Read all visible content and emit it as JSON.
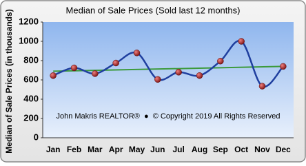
{
  "chart_data": {
    "type": "line",
    "title": "Median of Sale Prices (Sold last 12 months)",
    "y_label": "Median of Sale Prices (in thousands)",
    "annotation": "John Makris REALTOR®  ●  © Copyright 2019 All Rights Reserved",
    "categories": [
      "Jan",
      "Feb",
      "Mar",
      "Apr",
      "May",
      "Jun",
      "Jul",
      "Aug",
      "Sep",
      "Oct",
      "Nov",
      "Dec"
    ],
    "series": [
      {
        "color": "#1f3f9f",
        "values": [
          645,
          725,
          665,
          775,
          880,
          605,
          680,
          645,
          795,
          1000,
          535,
          740
        ]
      }
    ],
    "trendline": {
      "color": "#3c9a3c",
      "start": 690,
      "end": 740
    },
    "ylim": [
      0,
      1200
    ],
    "yticks": [
      0,
      200,
      400,
      600,
      800,
      1000,
      1200
    ],
    "grid": false
  }
}
